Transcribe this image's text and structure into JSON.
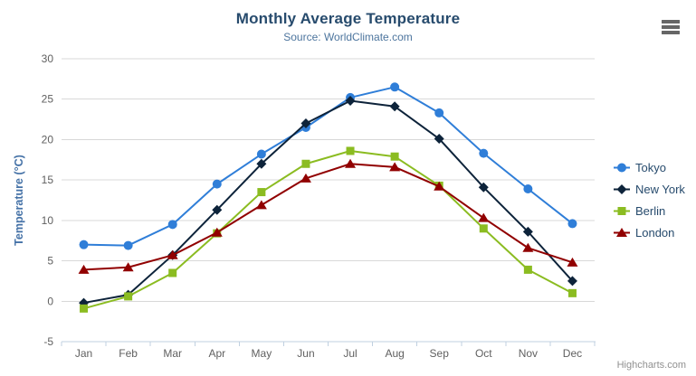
{
  "chart_data": {
    "type": "line",
    "title": "Monthly Average Temperature",
    "subtitle": "Source: WorldClimate.com",
    "categories": [
      "Jan",
      "Feb",
      "Mar",
      "Apr",
      "May",
      "Jun",
      "Jul",
      "Aug",
      "Sep",
      "Oct",
      "Nov",
      "Dec"
    ],
    "xlabel": "",
    "ylabel": "Temperature (°C)",
    "ylim": [
      -5,
      30
    ],
    "ytick_interval": 5,
    "ytick_labels": [
      "-5",
      "0",
      "5",
      "10",
      "15",
      "20",
      "25",
      "30"
    ],
    "grid": true,
    "legend_position": "right",
    "series": [
      {
        "name": "Tokyo",
        "color": "#2f7ed8",
        "marker": "circle",
        "values": [
          7.0,
          6.9,
          9.5,
          14.5,
          18.2,
          21.5,
          25.2,
          26.5,
          23.3,
          18.3,
          13.9,
          9.6
        ]
      },
      {
        "name": "New York",
        "color": "#0d233a",
        "marker": "diamond",
        "values": [
          -0.2,
          0.8,
          5.7,
          11.3,
          17.0,
          22.0,
          24.8,
          24.1,
          20.1,
          14.1,
          8.6,
          2.5
        ]
      },
      {
        "name": "Berlin",
        "color": "#8bbc21",
        "marker": "square",
        "values": [
          -0.9,
          0.6,
          3.5,
          8.4,
          13.5,
          17.0,
          18.6,
          17.9,
          14.3,
          9.0,
          3.9,
          1.0
        ]
      },
      {
        "name": "London",
        "color": "#910000",
        "marker": "triangle",
        "values": [
          3.9,
          4.2,
          5.7,
          8.5,
          11.9,
          15.2,
          17.0,
          16.6,
          14.2,
          10.3,
          6.6,
          4.8
        ]
      }
    ]
  },
  "toolbar": {
    "context_menu_icon": "hamburger-icon"
  },
  "credit": {
    "label": "Highcharts.com"
  },
  "colors": {
    "title": "#274b6d",
    "subtitle": "#4d759e",
    "axis_title": "#4572a7",
    "tick_label": "#606060",
    "legend_text": "#274b6d",
    "grid_line": "#d8d8d8",
    "axis_line": "#c0d0e0",
    "credit": "#909090",
    "menu_icon": "#666666"
  }
}
